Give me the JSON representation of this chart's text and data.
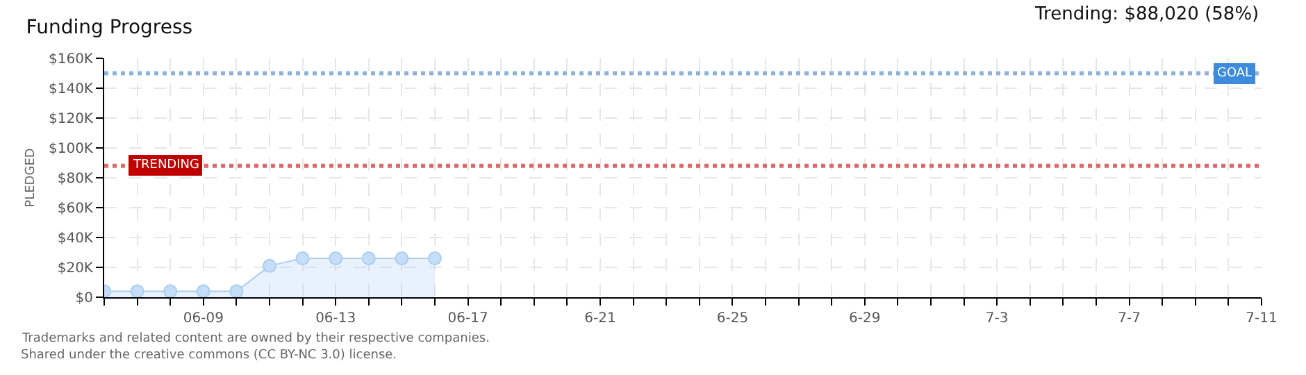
{
  "chart_data": {
    "type": "area",
    "title": "Funding Progress",
    "ylabel": "PLEDGED",
    "annotations": [
      "Trending: $88,020 (58%)",
      "Trademarks and related content are owned by their respective companies.",
      "Shared under the creative commons (CC BY-NC 3.0) license."
    ],
    "x": [
      "--06-06",
      "--06-07",
      "--06-08",
      "--06-09",
      "--06-10",
      "--06-11",
      "--06-12",
      "--06-13",
      "--06-14",
      "--06-15",
      "--06-16"
    ],
    "series": [
      {
        "color": "#a9cdf2",
        "values": [
          4000,
          4000,
          4000,
          4000,
          4000,
          21000,
          26000,
          26000,
          26000,
          26000,
          26000
        ]
      }
    ],
    "xlim": [
      "--06-06",
      "--07-11"
    ],
    "xticks": [
      {
        "value": "--06-06",
        "label": null
      },
      {
        "value": "--06-07",
        "label": null
      },
      {
        "value": "--06-08",
        "label": null
      },
      {
        "value": "--06-09",
        "label": "06-09"
      },
      {
        "value": "--06-10",
        "label": null
      },
      {
        "value": "--06-11",
        "label": null
      },
      {
        "value": "--06-12",
        "label": null
      },
      {
        "value": "--06-13",
        "label": "06-13"
      },
      {
        "value": "--06-14",
        "label": null
      },
      {
        "value": "--06-15",
        "label": null
      },
      {
        "value": "--06-16",
        "label": null
      },
      {
        "value": "--06-17",
        "label": "06-17"
      },
      {
        "value": "--06-18",
        "label": null
      },
      {
        "value": "--06-19",
        "label": null
      },
      {
        "value": "--06-20",
        "label": null
      },
      {
        "value": "--06-21",
        "label": "6-21"
      },
      {
        "value": "--06-22",
        "label": null
      },
      {
        "value": "--06-23",
        "label": null
      },
      {
        "value": "--06-24",
        "label": null
      },
      {
        "value": "--06-25",
        "label": "6-25"
      },
      {
        "value": "--06-26",
        "label": null
      },
      {
        "value": "--06-27",
        "label": null
      },
      {
        "value": "--06-28",
        "label": null
      },
      {
        "value": "--06-29",
        "label": "6-29"
      },
      {
        "value": "--06-30",
        "label": null
      },
      {
        "value": "--07-01",
        "label": null
      },
      {
        "value": "--07-02",
        "label": null
      },
      {
        "value": "--07-03",
        "label": "7-3"
      },
      {
        "value": "--07-04",
        "label": null
      },
      {
        "value": "--07-05",
        "label": null
      },
      {
        "value": "--07-06",
        "label": null
      },
      {
        "value": "--07-07",
        "label": "7-7"
      },
      {
        "value": "--07-08",
        "label": null
      },
      {
        "value": "--07-09",
        "label": null
      },
      {
        "value": "--07-10",
        "label": null
      },
      {
        "value": "--07-11",
        "label": "7-11"
      }
    ],
    "ylim": [
      0,
      160000
    ],
    "yticks": [
      {
        "value": 0,
        "label": "$0"
      },
      {
        "value": 20000,
        "label": "$20K"
      },
      {
        "value": 40000,
        "label": "$40K"
      },
      {
        "value": 60000,
        "label": "$60K"
      },
      {
        "value": 80000,
        "label": "$80K"
      },
      {
        "value": 100000,
        "label": "$100K"
      },
      {
        "value": 120000,
        "label": "$120K"
      },
      {
        "value": 140000,
        "label": "$140K"
      },
      {
        "value": 160000,
        "label": "$160K"
      }
    ],
    "ref_lines": [
      {
        "axis": "y",
        "value": 150000,
        "label": "GOAL",
        "color": "#8fb3dd",
        "line_style": "dotted"
      },
      {
        "axis": "y",
        "value": 88020,
        "label": "TRENDING",
        "color": "#d96b6b",
        "line_style": "dotted"
      }
    ],
    "grid": true,
    "marker": "circle"
  }
}
